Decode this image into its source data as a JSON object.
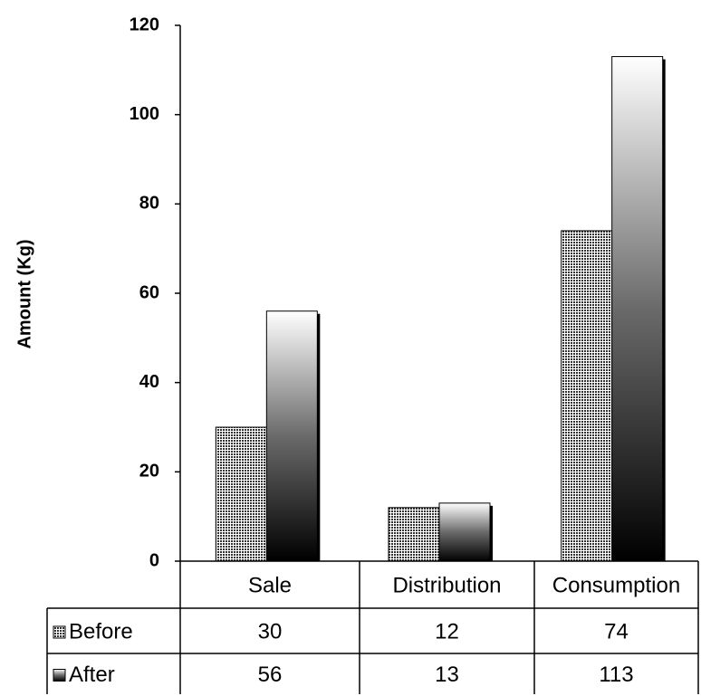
{
  "chart_data": {
    "type": "bar",
    "ylabel": "Amount (Kg)",
    "xlabel": "",
    "ylim": [
      0,
      120
    ],
    "yticks": [
      0,
      20,
      40,
      60,
      80,
      100,
      120
    ],
    "categories": [
      "Sale",
      "Distribution",
      "Consumption"
    ],
    "series": [
      {
        "name": "Before",
        "values": [
          30,
          12,
          74
        ],
        "fill": "dotted",
        "color": "#7f7f7f"
      },
      {
        "name": "After",
        "values": [
          56,
          13,
          113
        ],
        "fill": "gradient",
        "color": "#000000"
      }
    ],
    "data_table": true,
    "grid": false,
    "legend": "data-table"
  }
}
